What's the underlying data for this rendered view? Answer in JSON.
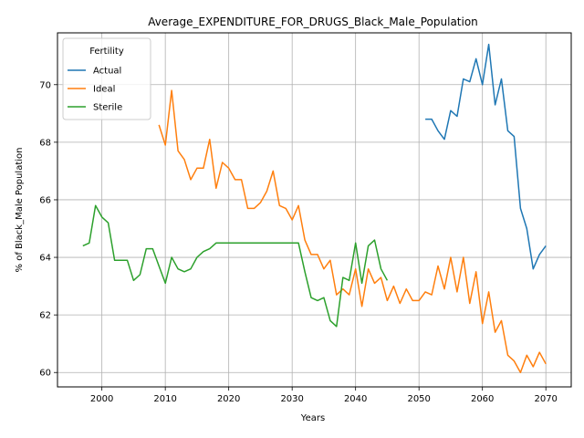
{
  "chart_data": {
    "type": "line",
    "title": "Average_EXPENDITURE_FOR_DRUGS_Black_Male_Population",
    "xlabel": "Years",
    "ylabel": "% of Black_Male Population",
    "xlim": [
      1993,
      2074
    ],
    "ylim": [
      59.5,
      71.8
    ],
    "xticks": [
      2000,
      2010,
      2020,
      2030,
      2040,
      2050,
      2060,
      2070
    ],
    "yticks": [
      60,
      62,
      64,
      66,
      68,
      70
    ],
    "grid": true,
    "legend": {
      "title": "Fertility",
      "placement": "top-left"
    },
    "colors": {
      "Actual": "#1f77b4",
      "Ideal": "#ff7f0e",
      "Sterile": "#2ca02c"
    },
    "series": [
      {
        "name": "Actual",
        "x": [
          2051,
          2052,
          2053,
          2054,
          2055,
          2056,
          2057,
          2058,
          2059,
          2060,
          2061,
          2062,
          2063,
          2064,
          2065,
          2066,
          2067,
          2068,
          2069,
          2070
        ],
        "y": [
          68.8,
          68.8,
          68.4,
          68.1,
          69.1,
          68.9,
          70.2,
          70.1,
          70.9,
          70.0,
          71.4,
          69.3,
          70.2,
          68.4,
          68.2,
          65.7,
          65.0,
          63.6,
          64.1,
          64.4
        ]
      },
      {
        "name": "Ideal",
        "x": [
          2009,
          2010,
          2011,
          2012,
          2013,
          2014,
          2015,
          2016,
          2017,
          2018,
          2019,
          2020,
          2021,
          2022,
          2023,
          2024,
          2025,
          2026,
          2027,
          2028,
          2029,
          2030,
          2031,
          2032,
          2033,
          2034,
          2035,
          2036,
          2037,
          2038,
          2039,
          2040,
          2041,
          2042,
          2043,
          2044,
          2045,
          2046,
          2047,
          2048,
          2049,
          2050,
          2051,
          2052,
          2053,
          2054,
          2055,
          2056,
          2057,
          2058,
          2059,
          2060,
          2061,
          2062,
          2063,
          2064,
          2065,
          2066,
          2067,
          2068,
          2069,
          2070
        ],
        "y": [
          68.6,
          67.9,
          69.8,
          67.7,
          67.4,
          66.7,
          67.1,
          67.1,
          68.1,
          66.4,
          67.3,
          67.1,
          66.7,
          66.7,
          65.7,
          65.7,
          65.9,
          66.3,
          67.0,
          65.8,
          65.7,
          65.3,
          65.8,
          64.6,
          64.1,
          64.1,
          63.6,
          63.9,
          62.7,
          62.9,
          62.7,
          63.6,
          62.3,
          63.6,
          63.1,
          63.3,
          62.5,
          63.0,
          62.4,
          62.9,
          62.5,
          62.5,
          62.8,
          62.7,
          63.7,
          62.9,
          64.0,
          62.8,
          64.0,
          62.4,
          63.5,
          61.7,
          62.8,
          61.4,
          61.8,
          60.6,
          60.4,
          60.0,
          60.6,
          60.2,
          60.7,
          60.3
        ]
      },
      {
        "name": "Sterile",
        "x": [
          1997,
          1998,
          1999,
          2000,
          2001,
          2002,
          2003,
          2004,
          2005,
          2006,
          2007,
          2008,
          2009,
          2010,
          2011,
          2012,
          2013,
          2014,
          2015,
          2016,
          2017,
          2018,
          2019,
          2020,
          2021,
          2022,
          2023,
          2024,
          2025,
          2026,
          2027,
          2028,
          2029,
          2030,
          2031,
          2032,
          2033,
          2034,
          2035,
          2036,
          2037,
          2038,
          2039,
          2040,
          2041,
          2042,
          2043,
          2044,
          2045
        ],
        "y": [
          64.4,
          64.5,
          65.8,
          65.4,
          65.2,
          63.9,
          63.9,
          63.9,
          63.2,
          63.4,
          64.3,
          64.3,
          63.7,
          63.1,
          64.0,
          63.6,
          63.5,
          63.6,
          64.0,
          64.2,
          64.3,
          64.5,
          64.5,
          64.5,
          64.5,
          64.5,
          64.5,
          64.5,
          64.5,
          64.5,
          64.5,
          64.5,
          64.5,
          64.5,
          64.5,
          63.5,
          62.6,
          62.5,
          62.6,
          61.8,
          61.6,
          63.3,
          63.2,
          64.5,
          63.1,
          64.4,
          64.6,
          63.6,
          63.2
        ]
      }
    ]
  }
}
